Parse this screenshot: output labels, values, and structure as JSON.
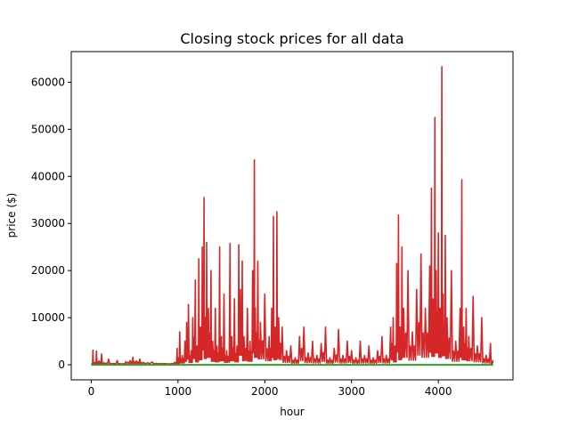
{
  "chart_data": {
    "type": "line",
    "title": "Closing stock prices for all data",
    "xlabel": "hour",
    "ylabel": "price ($)",
    "xlim": [
      -230,
      4860
    ],
    "ylim": [
      -3200,
      66500
    ],
    "x_ticks": [
      0,
      1000,
      2000,
      3000,
      4000
    ],
    "y_ticks": [
      0,
      10000,
      20000,
      30000,
      40000,
      50000,
      60000
    ],
    "grid": false,
    "legend": "none",
    "series": [
      {
        "color": "#d62728",
        "style": "spiky",
        "points": [
          [
            0,
            200
          ],
          [
            20,
            3100
          ],
          [
            40,
            500
          ],
          [
            60,
            2900
          ],
          [
            90,
            800
          ],
          [
            120,
            2300
          ],
          [
            150,
            400
          ],
          [
            200,
            1200
          ],
          [
            250,
            300
          ],
          [
            300,
            900
          ],
          [
            350,
            200
          ],
          [
            400,
            700
          ],
          [
            450,
            900
          ],
          [
            480,
            1600
          ],
          [
            520,
            800
          ],
          [
            560,
            1200
          ],
          [
            600,
            500
          ],
          [
            700,
            600
          ],
          [
            800,
            300
          ],
          [
            900,
            200
          ],
          [
            960,
            500
          ],
          [
            990,
            3500
          ],
          [
            1000,
            1500
          ],
          [
            1020,
            7000
          ],
          [
            1050,
            2000
          ],
          [
            1080,
            5000
          ],
          [
            1100,
            9000
          ],
          [
            1120,
            12800
          ],
          [
            1150,
            3000
          ],
          [
            1170,
            10000
          ],
          [
            1200,
            18000
          ],
          [
            1220,
            4000
          ],
          [
            1240,
            22500
          ],
          [
            1260,
            8000
          ],
          [
            1280,
            25000
          ],
          [
            1300,
            35500
          ],
          [
            1315,
            10000
          ],
          [
            1330,
            26000
          ],
          [
            1350,
            12000
          ],
          [
            1380,
            20000
          ],
          [
            1400,
            5000
          ],
          [
            1430,
            12000
          ],
          [
            1450,
            4000
          ],
          [
            1480,
            25000
          ],
          [
            1500,
            6000
          ],
          [
            1530,
            15000
          ],
          [
            1560,
            3000
          ],
          [
            1600,
            25800
          ],
          [
            1620,
            6000
          ],
          [
            1650,
            14000
          ],
          [
            1680,
            4000
          ],
          [
            1700,
            25500
          ],
          [
            1720,
            16000
          ],
          [
            1740,
            22000
          ],
          [
            1760,
            6000
          ],
          [
            1800,
            12000
          ],
          [
            1830,
            5000
          ],
          [
            1860,
            20000
          ],
          [
            1880,
            43500
          ],
          [
            1890,
            12000
          ],
          [
            1920,
            22000
          ],
          [
            1950,
            9000
          ],
          [
            2000,
            15000
          ],
          [
            2050,
            6000
          ],
          [
            2080,
            12000
          ],
          [
            2100,
            31500
          ],
          [
            2120,
            8000
          ],
          [
            2140,
            32500
          ],
          [
            2160,
            10000
          ],
          [
            2200,
            8000
          ],
          [
            2250,
            3000
          ],
          [
            2300,
            4000
          ],
          [
            2350,
            1500
          ],
          [
            2400,
            6000
          ],
          [
            2450,
            8000
          ],
          [
            2500,
            2500
          ],
          [
            2550,
            5000
          ],
          [
            2600,
            2000
          ],
          [
            2650,
            4500
          ],
          [
            2700,
            8000
          ],
          [
            2750,
            1500
          ],
          [
            2800,
            3500
          ],
          [
            2850,
            7500
          ],
          [
            2900,
            2000
          ],
          [
            2950,
            5000
          ],
          [
            3000,
            3000
          ],
          [
            3050,
            1500
          ],
          [
            3100,
            5000
          ],
          [
            3150,
            2000
          ],
          [
            3200,
            4000
          ],
          [
            3250,
            1500
          ],
          [
            3300,
            3000
          ],
          [
            3350,
            6000
          ],
          [
            3400,
            2000
          ],
          [
            3450,
            8000
          ],
          [
            3480,
            10000
          ],
          [
            3500,
            4000
          ],
          [
            3520,
            21500
          ],
          [
            3540,
            31800
          ],
          [
            3560,
            8000
          ],
          [
            3580,
            25000
          ],
          [
            3600,
            12000
          ],
          [
            3650,
            20000
          ],
          [
            3700,
            7000
          ],
          [
            3750,
            16000
          ],
          [
            3800,
            23500
          ],
          [
            3850,
            12000
          ],
          [
            3900,
            21000
          ],
          [
            3920,
            37500
          ],
          [
            3940,
            14000
          ],
          [
            3960,
            52500
          ],
          [
            3975,
            20000
          ],
          [
            4000,
            28000
          ],
          [
            4020,
            12000
          ],
          [
            4040,
            63300
          ],
          [
            4055,
            15000
          ],
          [
            4080,
            27500
          ],
          [
            4100,
            10000
          ],
          [
            4150,
            20000
          ],
          [
            4200,
            5000
          ],
          [
            4250,
            12000
          ],
          [
            4270,
            39300
          ],
          [
            4290,
            8000
          ],
          [
            4320,
            12000
          ],
          [
            4350,
            6000
          ],
          [
            4400,
            14500
          ],
          [
            4450,
            4000
          ],
          [
            4500,
            10000
          ],
          [
            4550,
            2000
          ],
          [
            4600,
            4500
          ],
          [
            4630,
            1000
          ]
        ]
      },
      {
        "color": "#2ca02c",
        "style": "line",
        "points": [
          [
            0,
            0
          ],
          [
            4630,
            0
          ]
        ]
      }
    ]
  }
}
